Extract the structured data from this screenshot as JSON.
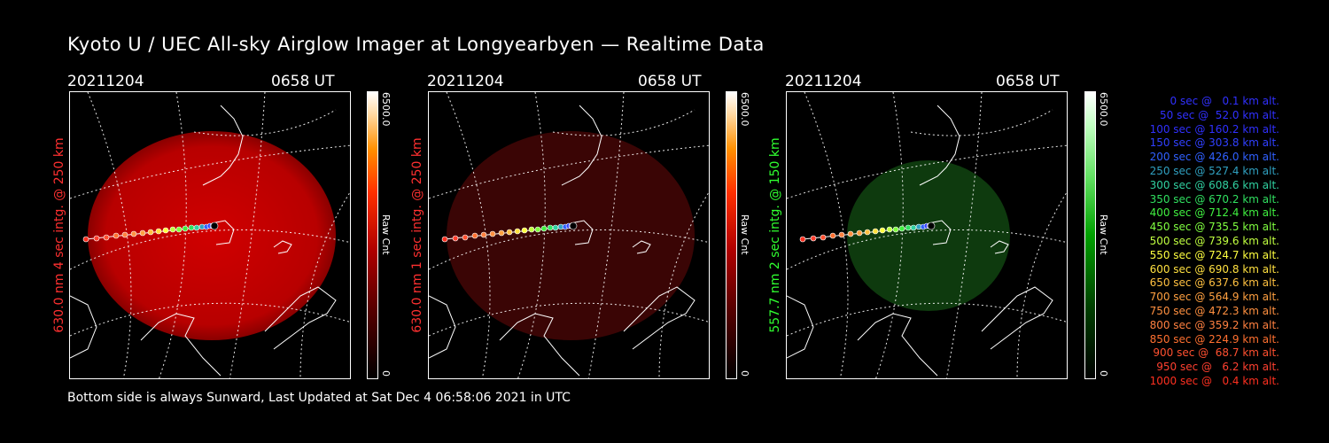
{
  "title": "Kyoto U / UEC All-sky Airglow Imager at Longyearbyen — Realtime Data",
  "panels": [
    {
      "date": "20211204",
      "time": "0658 UT",
      "ylabel": "630.0 nm 4 sec intg. @ 250 km",
      "label_color": "#ff3030",
      "colorbar_max": "6500.0",
      "colorbar_min": "0",
      "colorbar_label": "Raw Cnt"
    },
    {
      "date": "20211204",
      "time": "0658 UT",
      "ylabel": "630.0 nm 1 sec intg. @ 250 km",
      "label_color": "#ff3030",
      "colorbar_max": "6500.0",
      "colorbar_min": "0",
      "colorbar_label": "Raw Cnt"
    },
    {
      "date": "20211204",
      "time": "0658 UT",
      "ylabel": "557.7 nm 2 sec intg. @ 150 km",
      "label_color": "#30ff30",
      "colorbar_max": "6500.0",
      "colorbar_min": "0",
      "colorbar_label": "Raw Cnt"
    }
  ],
  "legend": [
    {
      "text": "0 sec @   0.1 km alt.",
      "color": "#3030ff"
    },
    {
      "text": "50 sec @  52.0 km alt.",
      "color": "#3030ff"
    },
    {
      "text": "100 sec @ 160.2 km alt.",
      "color": "#3030ff"
    },
    {
      "text": "150 sec @ 303.8 km alt.",
      "color": "#3040ff"
    },
    {
      "text": "200 sec @ 426.0 km alt.",
      "color": "#3060ff"
    },
    {
      "text": "250 sec @ 527.4 km alt.",
      "color": "#30a0c0"
    },
    {
      "text": "300 sec @ 608.6 km alt.",
      "color": "#30d0a0"
    },
    {
      "text": "350 sec @ 670.2 km alt.",
      "color": "#30e060"
    },
    {
      "text": "400 sec @ 712.4 km alt.",
      "color": "#40f040"
    },
    {
      "text": "450 sec @ 735.5 km alt.",
      "color": "#80ff40"
    },
    {
      "text": "500 sec @ 739.6 km alt.",
      "color": "#c0ff40"
    },
    {
      "text": "550 sec @ 724.7 km alt.",
      "color": "#ffff40"
    },
    {
      "text": "600 sec @ 690.8 km alt.",
      "color": "#ffe040"
    },
    {
      "text": "650 sec @ 637.6 km alt.",
      "color": "#ffc040"
    },
    {
      "text": "700 sec @ 564.9 km alt.",
      "color": "#ffa040"
    },
    {
      "text": "750 sec @ 472.3 km alt.",
      "color": "#ff9040"
    },
    {
      "text": "800 sec @ 359.2 km alt.",
      "color": "#ff8040"
    },
    {
      "text": "850 sec @ 224.9 km alt.",
      "color": "#ff7030"
    },
    {
      "text": "900 sec @  68.7 km alt.",
      "color": "#ff5030"
    },
    {
      "text": "950 sec @   6.2 km alt.",
      "color": "#ff4030"
    },
    {
      "text": "1000 sec @   0.4 km alt.",
      "color": "#ff3020"
    }
  ],
  "footer": "Bottom side is always Sunward, Last Updated at Sat Dec  4 06:58:06 2021 in UTC"
}
